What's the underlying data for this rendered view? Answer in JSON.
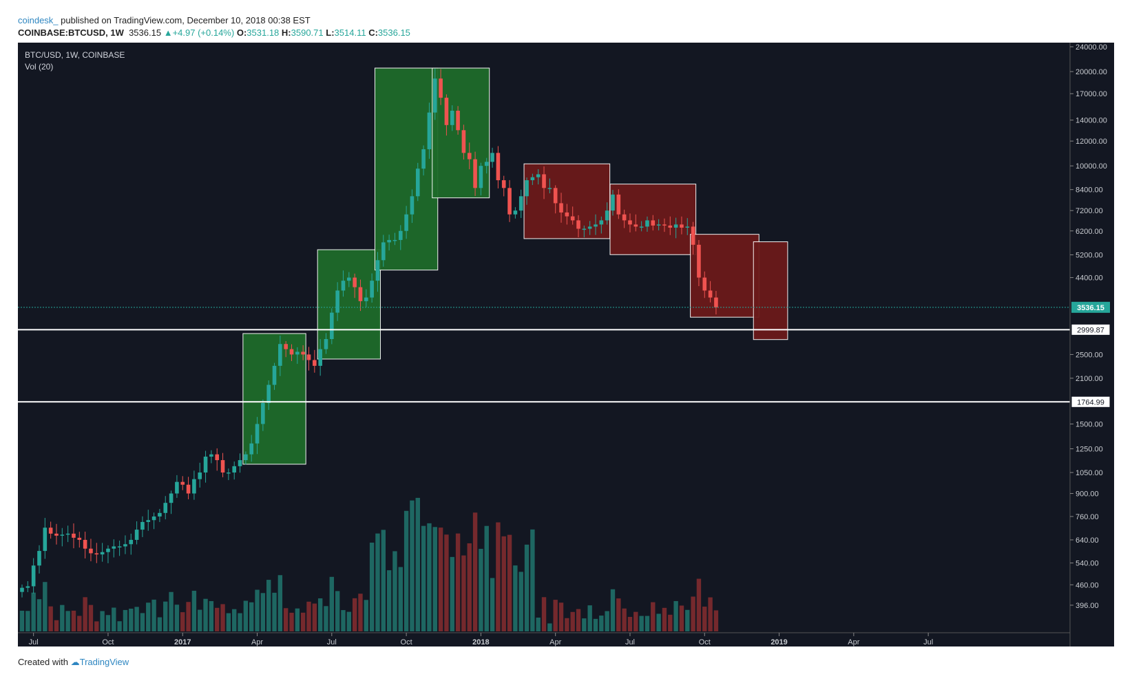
{
  "header": {
    "author": "coindesk_",
    "published": " published on TradingView.com, December 10, 2018 00:38 EST",
    "symbol_line": "COINBASE:BTCUSD, 1W",
    "last": "3536.15",
    "change_arrow": "▲",
    "change": "+4.97 (+0.14%)",
    "o_label": "O:",
    "o_value": "3531.18",
    "h_label": "H:",
    "h_value": "3590.71",
    "l_label": "L:",
    "l_value": "3514.11",
    "c_label": "C:",
    "c_value": "3536.15"
  },
  "legend": {
    "symbol": "BTC/USD, 1W, COINBASE",
    "indicator": "Vol (20)"
  },
  "footer": {
    "created_with": "Created with",
    "brand": "TradingView"
  },
  "colors": {
    "background": "#131722",
    "up": "#26a69a",
    "down": "#ef5350",
    "neutral": "#8d8f96",
    "green_box": "#1e6b2a",
    "red_box": "#6b1a1a",
    "label_bg": "#c8101e",
    "grid": "#2a2e39"
  },
  "chart_data": {
    "type": "candlestick",
    "title": "BTC/USD, 1W, COINBASE",
    "y_scale": "log",
    "ylim": [
      330,
      24000
    ],
    "y_ticks": [
      396,
      460,
      540,
      640,
      760,
      900,
      1050,
      1250,
      1500,
      2100,
      2500,
      4400,
      5200,
      6200,
      7200,
      8400,
      10000,
      12000,
      14000,
      17000,
      20000,
      24000
    ],
    "y_tick_labels": [
      "396.00",
      "460.00",
      "540.00",
      "640.00",
      "760.00",
      "900.00",
      "1050.00",
      "1250.00",
      "1500.00",
      "2100.00",
      "2500.00",
      "4400.00",
      "5200.00",
      "6200.00",
      "7200.00",
      "8400.00",
      "10000.00",
      "12000.00",
      "14000.00",
      "17000.00",
      "20000.00",
      "24000.00"
    ],
    "x_ticks": [
      {
        "label": "Jul",
        "index": 2
      },
      {
        "label": "Oct",
        "index": 15
      },
      {
        "label": "2017",
        "index": 28
      },
      {
        "label": "Apr",
        "index": 41
      },
      {
        "label": "Jul",
        "index": 54
      },
      {
        "label": "Oct",
        "index": 67
      },
      {
        "label": "2018",
        "index": 80
      },
      {
        "label": "Apr",
        "index": 93
      },
      {
        "label": "Jul",
        "index": 106
      },
      {
        "label": "Oct",
        "index": 119
      },
      {
        "label": "2019",
        "index": 132
      },
      {
        "label": "Apr",
        "index": 145
      },
      {
        "label": "Jul",
        "index": 158
      }
    ],
    "horizontal_lines": [
      {
        "value": 2999.87,
        "label": "2999.87"
      },
      {
        "value": 1764.99,
        "label": "1764.99"
      }
    ],
    "current_price": {
      "value": 3536.15,
      "label": "3536.15"
    },
    "closes": [
      450,
      455,
      530,
      590,
      700,
      670,
      660,
      665,
      670,
      650,
      640,
      600,
      580,
      575,
      585,
      600,
      610,
      610,
      620,
      640,
      690,
      730,
      740,
      760,
      780,
      840,
      900,
      980,
      960,
      900,
      1000,
      1050,
      1180,
      1200,
      1150,
      1050,
      1050,
      1100,
      1150,
      1200,
      1300,
      1500,
      1750,
      2000,
      2300,
      2700,
      2600,
      2500,
      2550,
      2500,
      2400,
      2300,
      2600,
      2800,
      3400,
      4000,
      4300,
      4400,
      4100,
      3700,
      3800,
      4300,
      5000,
      5700,
      5800,
      5800,
      6200,
      7000,
      8000,
      9800,
      11300,
      14800,
      19000,
      16500,
      13500,
      15000,
      13000,
      11000,
      10500,
      8500,
      10000,
      10300,
      11000,
      9000,
      8500,
      7000,
      7200,
      8000,
      9000,
      9200,
      9400,
      8500,
      8500,
      7600,
      7100,
      6900,
      6700,
      6300,
      6300,
      6400,
      6500,
      6700,
      7200,
      8100,
      7000,
      6700,
      6500,
      6400,
      6400,
      6700,
      6450,
      6500,
      6450,
      6350,
      6500,
      6350,
      6400,
      5600,
      4400,
      4000,
      3800,
      3536
    ]
  }
}
